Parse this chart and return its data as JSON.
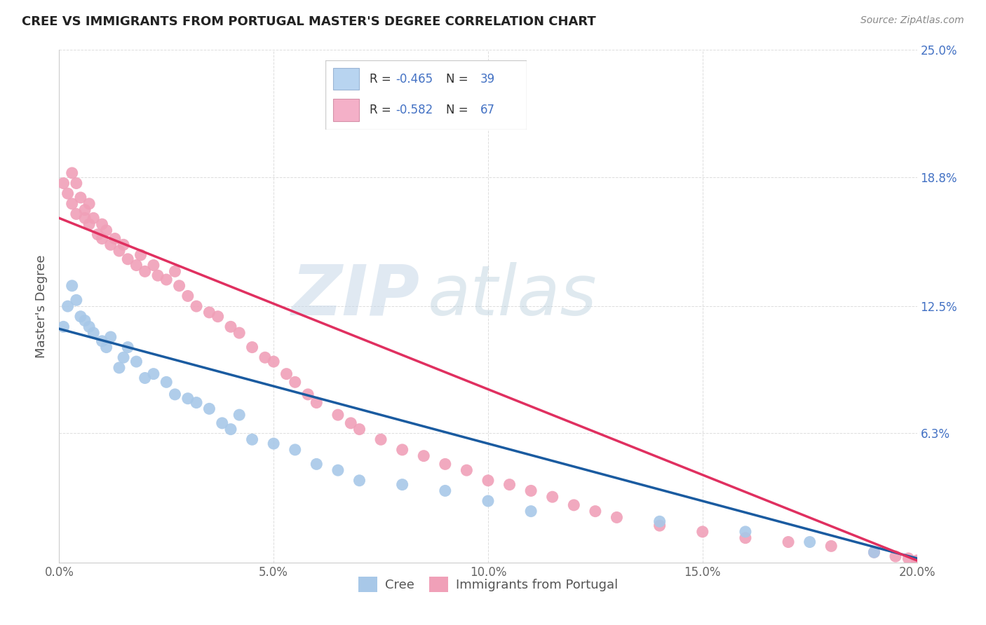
{
  "title": "CREE VS IMMIGRANTS FROM PORTUGAL MASTER'S DEGREE CORRELATION CHART",
  "source": "Source: ZipAtlas.com",
  "ylabel": "Master's Degree",
  "xlim": [
    0.0,
    0.2
  ],
  "ylim": [
    0.0,
    0.25
  ],
  "xtick_vals": [
    0.0,
    0.05,
    0.1,
    0.15,
    0.2
  ],
  "xtick_labels": [
    "0.0%",
    "5.0%",
    "10.0%",
    "15.0%",
    "20.0%"
  ],
  "ytick_vals": [
    0.0,
    0.063,
    0.125,
    0.188,
    0.25
  ],
  "ytick_labels": [
    "",
    "",
    "",
    "",
    ""
  ],
  "right_ytick_vals": [
    0.063,
    0.125,
    0.188,
    0.25
  ],
  "right_ytick_labels": [
    "6.3%",
    "12.5%",
    "18.8%",
    "25.0%"
  ],
  "scatter_color_cree": "#a8c8e8",
  "scatter_color_portugal": "#f0a0b8",
  "line_color_cree": "#1a5ba0",
  "line_color_portugal": "#e03060",
  "watermark_zip": "ZIP",
  "watermark_atlas": "atlas",
  "legend_r1": "R = ",
  "legend_v1": "-0.465",
  "legend_n1_label": "  N = ",
  "legend_n1": "39",
  "legend_r2": "R = ",
  "legend_v2": "-0.582",
  "legend_n2_label": "  N = ",
  "legend_n2": "67",
  "legend_color1": "#b8d4f0",
  "legend_color2": "#f4b0c8",
  "cree_x": [
    0.001,
    0.002,
    0.003,
    0.004,
    0.005,
    0.006,
    0.007,
    0.008,
    0.01,
    0.011,
    0.012,
    0.014,
    0.015,
    0.016,
    0.018,
    0.02,
    0.022,
    0.025,
    0.027,
    0.03,
    0.032,
    0.035,
    0.038,
    0.04,
    0.042,
    0.045,
    0.05,
    0.055,
    0.06,
    0.065,
    0.07,
    0.08,
    0.09,
    0.1,
    0.11,
    0.14,
    0.16,
    0.175,
    0.19
  ],
  "cree_y": [
    0.115,
    0.125,
    0.135,
    0.128,
    0.12,
    0.118,
    0.115,
    0.112,
    0.108,
    0.105,
    0.11,
    0.095,
    0.1,
    0.105,
    0.098,
    0.09,
    0.092,
    0.088,
    0.082,
    0.08,
    0.078,
    0.075,
    0.068,
    0.065,
    0.072,
    0.06,
    0.058,
    0.055,
    0.048,
    0.045,
    0.04,
    0.038,
    0.035,
    0.03,
    0.025,
    0.02,
    0.015,
    0.01,
    0.005
  ],
  "portugal_x": [
    0.001,
    0.002,
    0.003,
    0.003,
    0.004,
    0.004,
    0.005,
    0.006,
    0.006,
    0.007,
    0.007,
    0.008,
    0.009,
    0.01,
    0.01,
    0.011,
    0.012,
    0.013,
    0.014,
    0.015,
    0.016,
    0.018,
    0.019,
    0.02,
    0.022,
    0.023,
    0.025,
    0.027,
    0.028,
    0.03,
    0.032,
    0.035,
    0.037,
    0.04,
    0.042,
    0.045,
    0.048,
    0.05,
    0.053,
    0.055,
    0.058,
    0.06,
    0.065,
    0.068,
    0.07,
    0.075,
    0.08,
    0.085,
    0.09,
    0.095,
    0.1,
    0.105,
    0.11,
    0.115,
    0.12,
    0.125,
    0.13,
    0.14,
    0.15,
    0.16,
    0.17,
    0.18,
    0.19,
    0.195,
    0.198,
    0.2,
    0.2
  ],
  "portugal_y": [
    0.185,
    0.18,
    0.19,
    0.175,
    0.185,
    0.17,
    0.178,
    0.172,
    0.168,
    0.175,
    0.165,
    0.168,
    0.16,
    0.165,
    0.158,
    0.162,
    0.155,
    0.158,
    0.152,
    0.155,
    0.148,
    0.145,
    0.15,
    0.142,
    0.145,
    0.14,
    0.138,
    0.142,
    0.135,
    0.13,
    0.125,
    0.122,
    0.12,
    0.115,
    0.112,
    0.105,
    0.1,
    0.098,
    0.092,
    0.088,
    0.082,
    0.078,
    0.072,
    0.068,
    0.065,
    0.06,
    0.055,
    0.052,
    0.048,
    0.045,
    0.04,
    0.038,
    0.035,
    0.032,
    0.028,
    0.025,
    0.022,
    0.018,
    0.015,
    0.012,
    0.01,
    0.008,
    0.005,
    0.003,
    0.002,
    0.001,
    0.0
  ],
  "cree_line_x0": 0.0,
  "cree_line_x1": 0.2,
  "cree_line_y0": 0.114,
  "cree_line_y1": 0.002,
  "port_line_x0": 0.0,
  "port_line_x1": 0.2,
  "port_line_y0": 0.168,
  "port_line_y1": 0.001
}
